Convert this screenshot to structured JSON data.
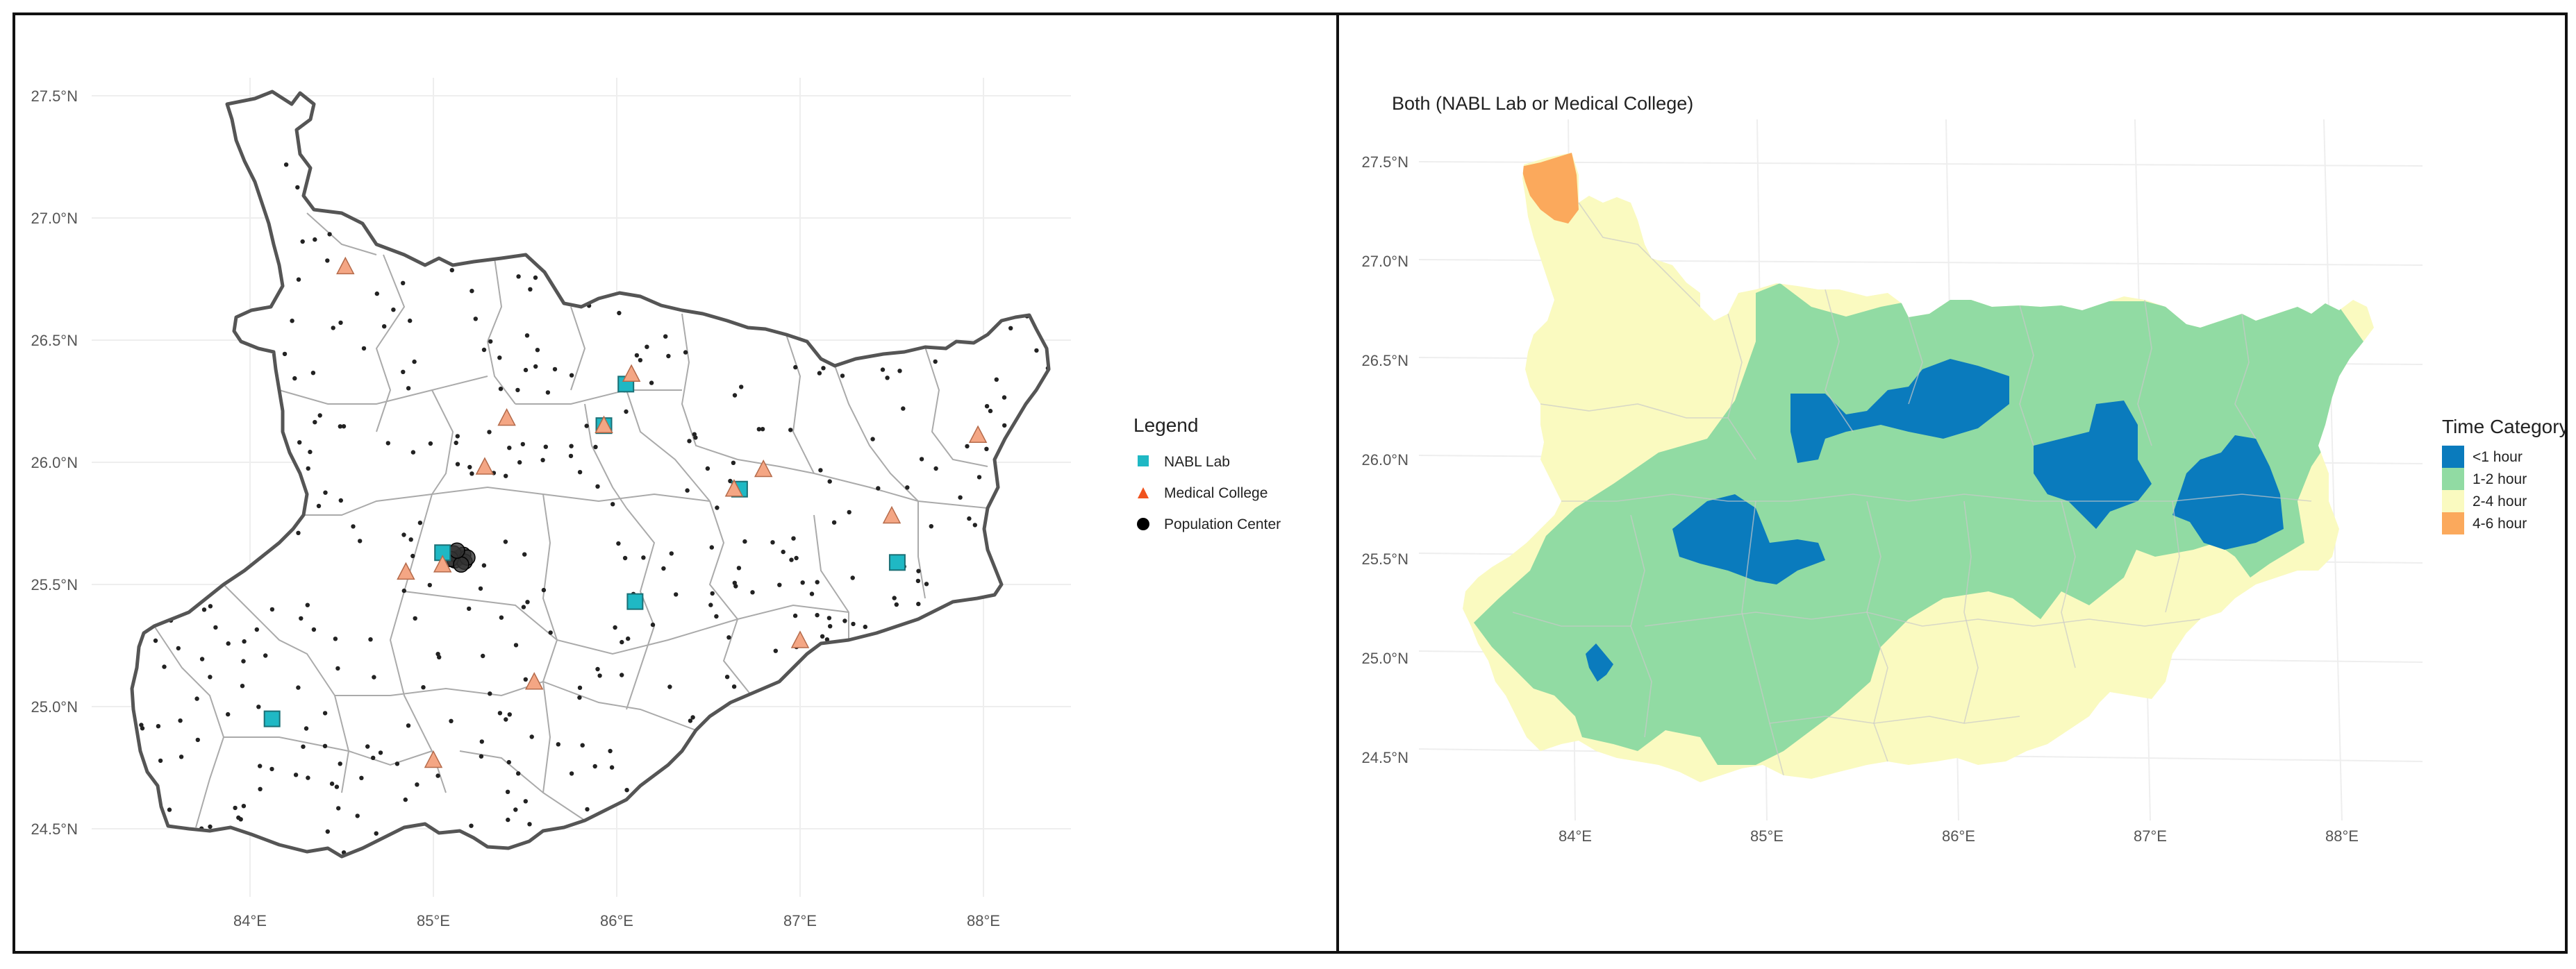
{
  "left_map": {
    "lat_ticks": [
      "27.5°N",
      "27.0°N",
      "26.5°N",
      "26.0°N",
      "25.5°N",
      "25.0°N",
      "24.5°N"
    ],
    "lon_ticks": [
      "84°E",
      "85°E",
      "86°E",
      "87°E",
      "88°E"
    ],
    "legend": {
      "title": "Legend",
      "items": [
        {
          "label": "NABL Lab",
          "color": "#1fb8c4",
          "icon": "square"
        },
        {
          "label": "Medical College",
          "color": "#f0531f",
          "icon": "triangle"
        },
        {
          "label": "Population Center",
          "color": "#000000",
          "icon": "circle"
        }
      ]
    },
    "nabl_labs": [
      [
        84.12,
        24.95
      ],
      [
        85.05,
        25.63
      ],
      [
        85.93,
        26.15
      ],
      [
        86.05,
        26.32
      ],
      [
        86.1,
        25.43
      ],
      [
        86.67,
        25.89
      ],
      [
        87.53,
        25.59
      ]
    ],
    "medical_colleges": [
      [
        84.52,
        26.8
      ],
      [
        84.85,
        25.55
      ],
      [
        85.0,
        24.78
      ],
      [
        85.05,
        25.58
      ],
      [
        85.28,
        25.98
      ],
      [
        85.4,
        26.18
      ],
      [
        85.55,
        25.1
      ],
      [
        85.93,
        26.15
      ],
      [
        86.08,
        26.36
      ],
      [
        86.64,
        25.89
      ],
      [
        86.8,
        25.97
      ],
      [
        87.0,
        25.27
      ],
      [
        87.5,
        25.78
      ],
      [
        87.97,
        26.11
      ]
    ],
    "population_cluster": [
      85.14,
      25.61
    ]
  },
  "right_map": {
    "title": "Both (NABL Lab or Medical College)",
    "lat_ticks": [
      "27.5°N",
      "27.0°N",
      "26.5°N",
      "26.0°N",
      "25.5°N",
      "25.0°N",
      "24.5°N"
    ],
    "lon_ticks": [
      "84°E",
      "85°E",
      "86°E",
      "87°E",
      "88°E"
    ],
    "legend": {
      "title": "Time Category",
      "items": [
        {
          "label": "<1 hour",
          "color": "#0a7bbd"
        },
        {
          "label": "1-2 hour",
          "color": "#91dba3"
        },
        {
          "label": "2-4 hour",
          "color": "#fafac0"
        },
        {
          "label": "4-6 hour",
          "color": "#fba95c"
        }
      ]
    }
  }
}
